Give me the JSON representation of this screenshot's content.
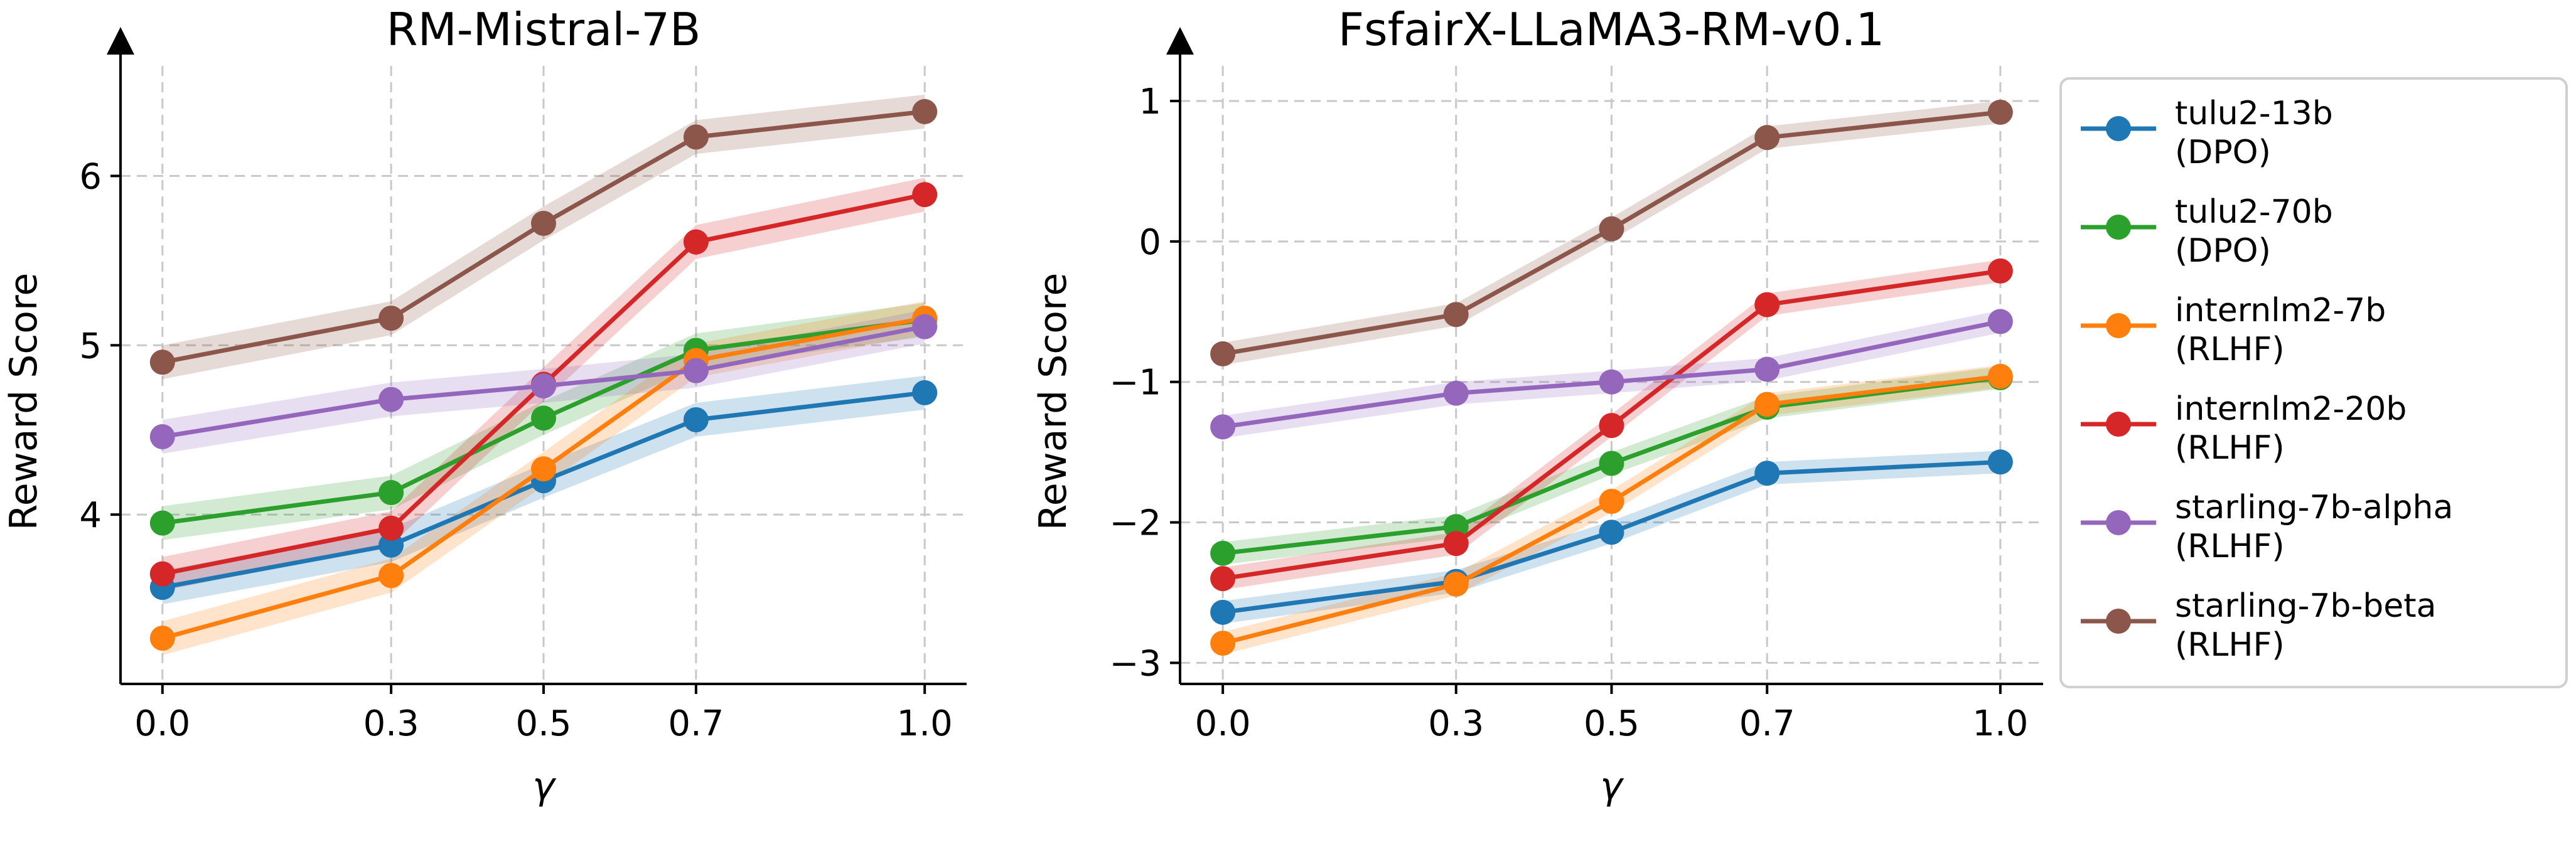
{
  "chart_data": [
    {
      "type": "line",
      "title": "RM-Mistral-7B",
      "xlabel": "γ",
      "ylabel": "Reward Score",
      "x": [
        0.0,
        0.3,
        0.5,
        0.7,
        1.0
      ],
      "x_tick_labels": [
        "0.0",
        "0.3",
        "0.5",
        "0.7",
        "1.0"
      ],
      "yticks": [
        4,
        5,
        6
      ],
      "y_tick_labels": [
        "4",
        "5",
        "6"
      ],
      "xlim": [
        -0.055,
        1.055
      ],
      "ylim": [
        3.0,
        6.65
      ],
      "grid": true,
      "series": [
        {
          "name": "tulu2-13b (DPO)",
          "values": [
            3.57,
            3.82,
            4.2,
            4.56,
            4.72
          ]
        },
        {
          "name": "tulu2-70b (DPO)",
          "values": [
            3.95,
            4.13,
            4.57,
            4.97,
            5.15
          ]
        },
        {
          "name": "internlm2-7b (RLHF)",
          "values": [
            3.27,
            3.64,
            4.27,
            4.91,
            5.16
          ]
        },
        {
          "name": "internlm2-20b (RLHF)",
          "values": [
            3.65,
            3.92,
            4.77,
            5.61,
            5.89
          ]
        },
        {
          "name": "starling-7b-alpha (RLHF)",
          "values": [
            4.46,
            4.68,
            4.76,
            4.85,
            5.11
          ]
        },
        {
          "name": "starling-7b-beta (RLHF)",
          "values": [
            4.9,
            5.16,
            5.72,
            6.23,
            6.38
          ]
        }
      ]
    },
    {
      "type": "line",
      "title": "FsfairX-LLaMA3-RM-v0.1",
      "xlabel": "γ",
      "ylabel": "Reward Score",
      "x": [
        0.0,
        0.3,
        0.5,
        0.7,
        1.0
      ],
      "x_tick_labels": [
        "0.0",
        "0.3",
        "0.5",
        "0.7",
        "1.0"
      ],
      "yticks": [
        1,
        0,
        -1,
        -2,
        -3
      ],
      "y_tick_labels": [
        "1",
        "0",
        "−1",
        "−2",
        "−3"
      ],
      "xlim": [
        -0.055,
        1.055
      ],
      "ylim": [
        -3.15,
        1.25
      ],
      "grid": true,
      "series": [
        {
          "name": "tulu2-13b (DPO)",
          "values": [
            -2.64,
            -2.42,
            -2.07,
            -1.65,
            -1.57
          ]
        },
        {
          "name": "tulu2-70b (DPO)",
          "values": [
            -2.22,
            -2.03,
            -1.58,
            -1.18,
            -0.97
          ]
        },
        {
          "name": "internlm2-7b (RLHF)",
          "values": [
            -2.86,
            -2.44,
            -1.85,
            -1.16,
            -0.96
          ]
        },
        {
          "name": "internlm2-20b (RLHF)",
          "values": [
            -2.4,
            -2.15,
            -1.31,
            -0.45,
            -0.21
          ]
        },
        {
          "name": "starling-7b-alpha (RLHF)",
          "values": [
            -1.32,
            -1.08,
            -1.0,
            -0.91,
            -0.57
          ]
        },
        {
          "name": "starling-7b-beta (RLHF)",
          "values": [
            -0.8,
            -0.52,
            0.09,
            0.74,
            0.92
          ]
        }
      ]
    }
  ],
  "legend": {
    "placement": "right",
    "entries": [
      {
        "line1": "tulu2-13b",
        "line2": "(DPO)",
        "color": "#1f77b4"
      },
      {
        "line1": "tulu2-70b",
        "line2": "(DPO)",
        "color": "#2ca02c"
      },
      {
        "line1": "internlm2-7b",
        "line2": "(RLHF)",
        "color": "#ff7f0e"
      },
      {
        "line1": "internlm2-20b",
        "line2": "(RLHF)",
        "color": "#d62728"
      },
      {
        "line1": "starling-7b-alpha",
        "line2": "(RLHF)",
        "color": "#9467bd"
      },
      {
        "line1": "starling-7b-beta",
        "line2": "(RLHF)",
        "color": "#8c564b"
      }
    ]
  },
  "colors": [
    "#1f77b4",
    "#2ca02c",
    "#ff7f0e",
    "#d62728",
    "#9467bd",
    "#8c564b"
  ],
  "band_halfwidth": [
    0.1,
    0.08
  ]
}
